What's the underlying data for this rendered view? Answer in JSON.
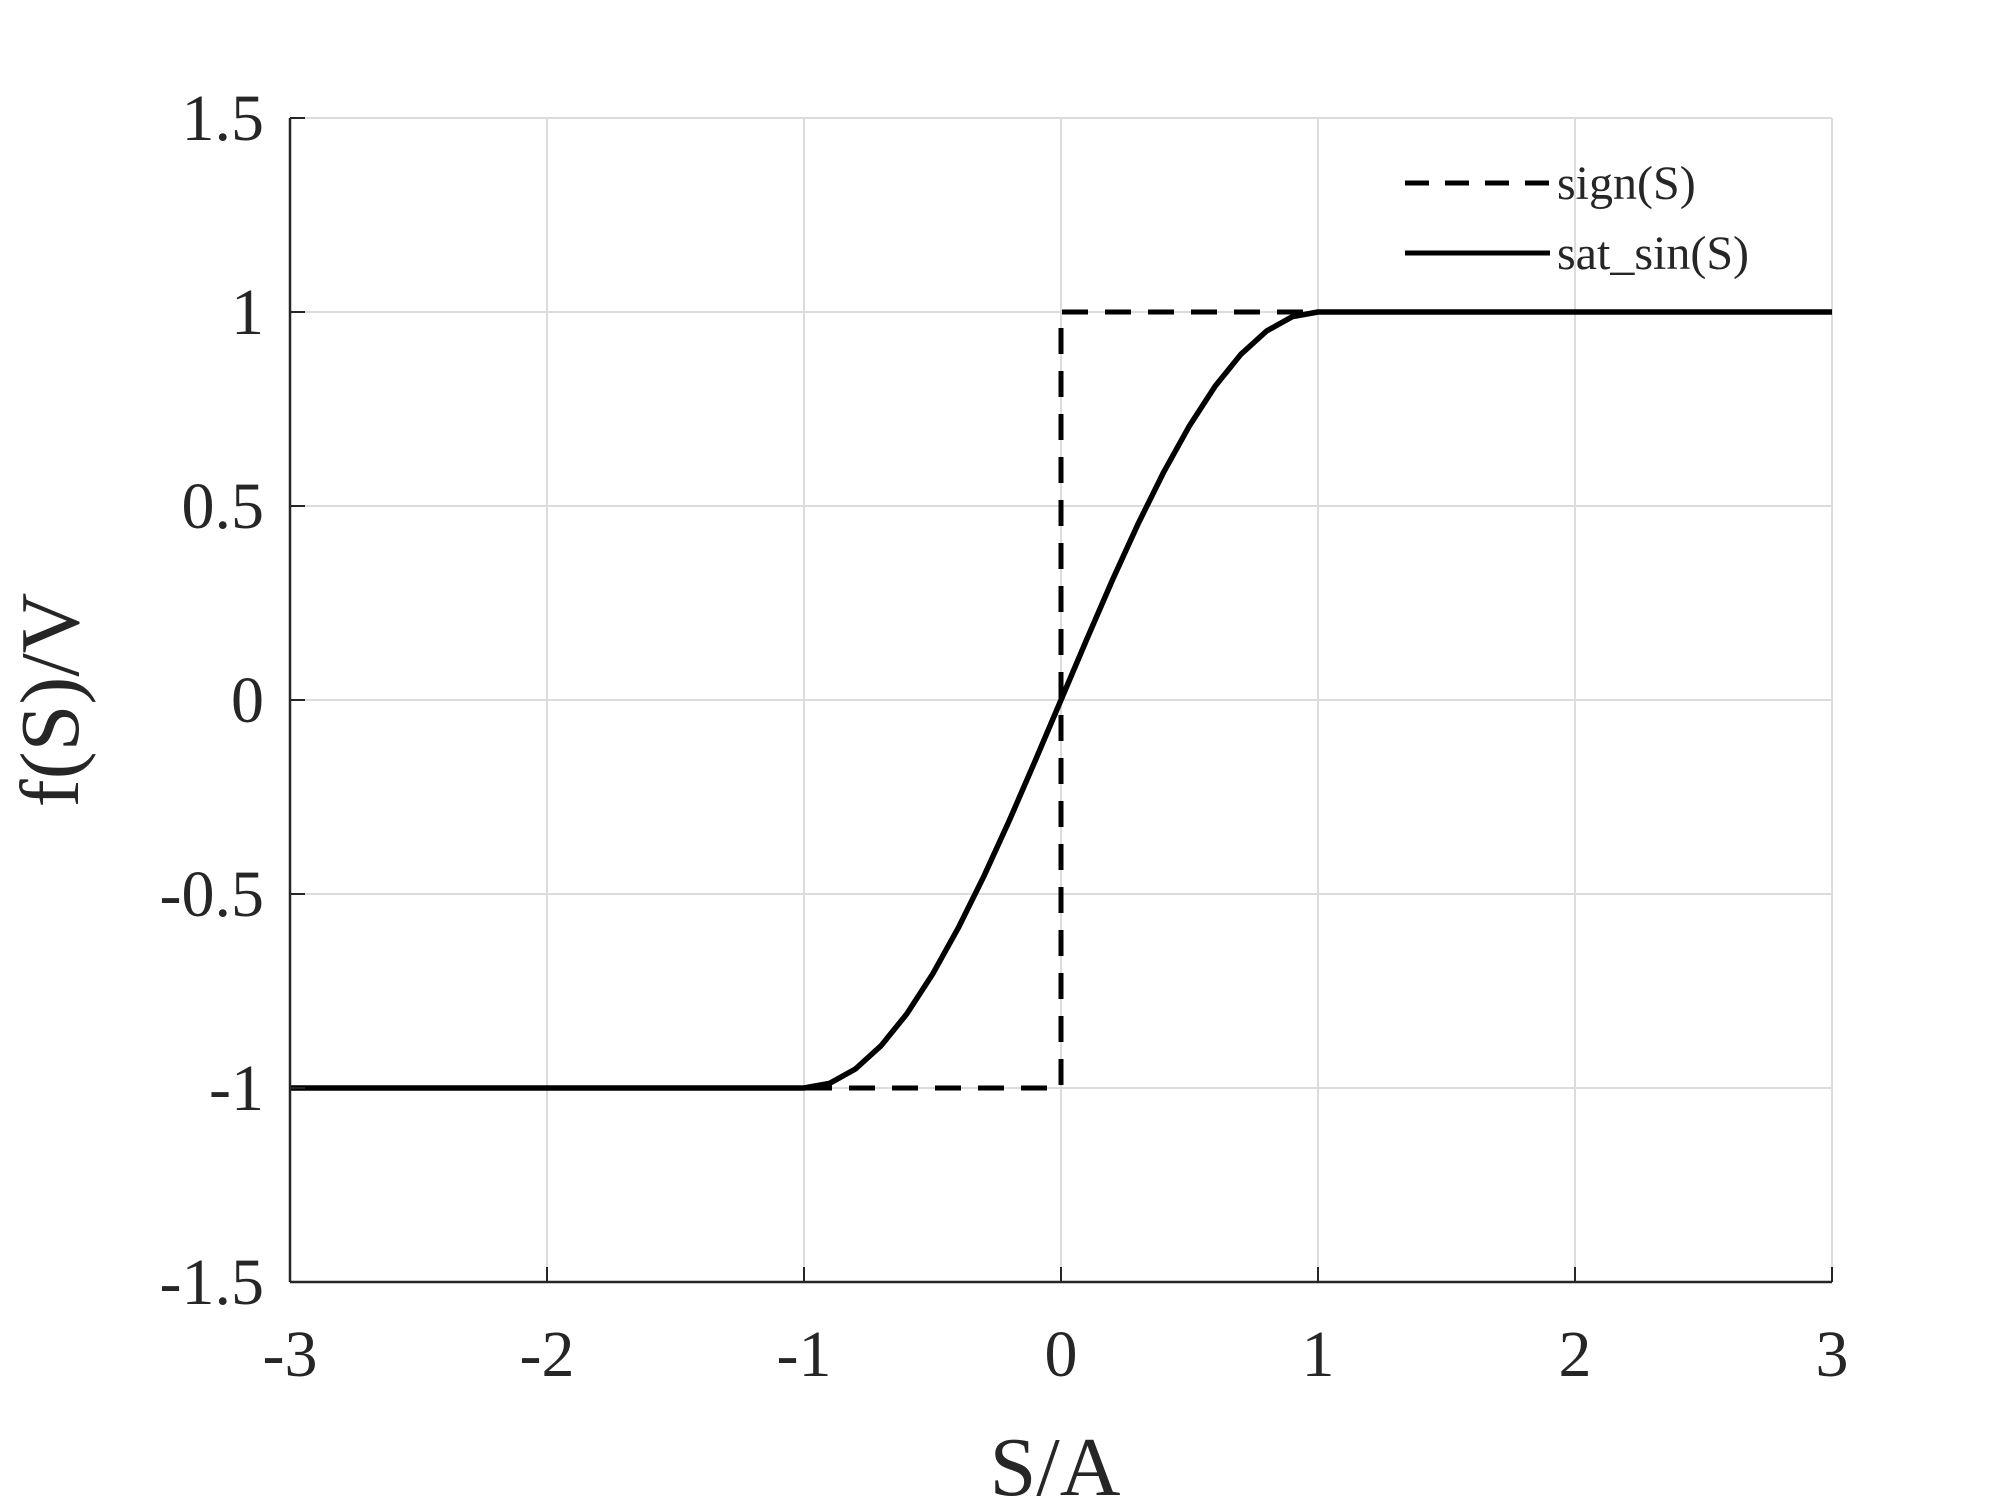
{
  "chart_data": {
    "type": "line",
    "xlabel": "S/A",
    "ylabel": "f(S)/V",
    "xlim": [
      -3,
      3
    ],
    "ylim": [
      -1.5,
      1.5
    ],
    "x_ticks": [
      -3,
      -2,
      -1,
      0,
      1,
      2,
      3
    ],
    "x_tick_labels": [
      "-3",
      "-2",
      "-1",
      "0",
      "1",
      "2",
      "3"
    ],
    "y_ticks": [
      -1.5,
      -1,
      -0.5,
      0,
      0.5,
      1,
      1.5
    ],
    "y_tick_labels": [
      "-1.5",
      "-1",
      "-0.5",
      "0",
      "0.5",
      "1",
      "1.5"
    ],
    "grid": true,
    "legend_position": "top-right",
    "series": [
      {
        "name": "sign(S)",
        "style": "dashed",
        "color": "#000000",
        "x": [
          -3,
          0,
          0,
          3
        ],
        "y": [
          -1,
          -1,
          1,
          1
        ]
      },
      {
        "name": "sat_sin(S)",
        "style": "solid",
        "color": "#000000",
        "x": [
          -3,
          -1,
          -0.9,
          -0.8,
          -0.7,
          -0.6,
          -0.5,
          -0.4,
          -0.3,
          -0.2,
          -0.1,
          0,
          0.1,
          0.2,
          0.3,
          0.4,
          0.5,
          0.6,
          0.7,
          0.8,
          0.9,
          1,
          3
        ],
        "y": [
          -1,
          -1,
          -0.988,
          -0.951,
          -0.891,
          -0.809,
          -0.707,
          -0.588,
          -0.454,
          -0.309,
          -0.156,
          0,
          0.156,
          0.309,
          0.454,
          0.588,
          0.707,
          0.809,
          0.891,
          0.951,
          0.988,
          1,
          1
        ]
      }
    ]
  }
}
